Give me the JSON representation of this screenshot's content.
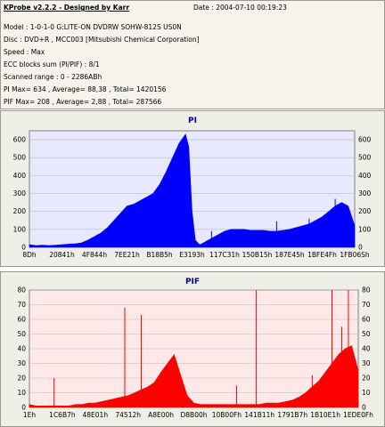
{
  "header": {
    "title": "KProbe v2.2.2 - Designed by Karr",
    "date": "Date : 2004-07-10 00:19:23",
    "model": "Model : 1-0-1-0 G:LITE-ON DVDRW SOHW-812S  US0N",
    "disc": "Disc : DVD+R , MCC003 [Mitsubishi Chemical Corporation]",
    "speed": "Speed : Max",
    "ecc": "ECC blocks sum (PI/PIF) : 8/1",
    "range": "Scanned range : 0 - 2286ABh",
    "pi_stats": "PI Max= 634 , Average= 88,38 , Total= 1420156",
    "pif_stats": "PIF Max= 208 , Average= 2,88 , Total= 287566"
  },
  "chart_data": [
    {
      "type": "bar",
      "title": "PI",
      "color": "#0000ff",
      "background": "#e8e8ff",
      "grid": true,
      "ylim": [
        0,
        650
      ],
      "yticks": [
        0,
        100,
        200,
        300,
        400,
        500,
        600
      ],
      "xticks": [
        "8Dh",
        "20841h",
        "4F844h",
        "7EE21h",
        "B18B5h",
        "E3193h",
        "117C31h",
        "150B15h",
        "187E45h",
        "1BFE4Fh",
        "1FB06Sh"
      ],
      "x": [
        0,
        0.02,
        0.04,
        0.06,
        0.08,
        0.1,
        0.12,
        0.14,
        0.16,
        0.18,
        0.2,
        0.22,
        0.24,
        0.26,
        0.28,
        0.3,
        0.32,
        0.34,
        0.36,
        0.38,
        0.4,
        0.42,
        0.44,
        0.46,
        0.48,
        0.49,
        0.5,
        0.51,
        0.52,
        0.525,
        0.53,
        0.54,
        0.56,
        0.58,
        0.6,
        0.62,
        0.64,
        0.66,
        0.68,
        0.7,
        0.72,
        0.74,
        0.76,
        0.78,
        0.8,
        0.82,
        0.84,
        0.86,
        0.88,
        0.9,
        0.92,
        0.94,
        0.96,
        0.98,
        1.0
      ],
      "values": [
        15,
        10,
        12,
        10,
        12,
        15,
        18,
        20,
        25,
        40,
        60,
        80,
        110,
        150,
        190,
        230,
        240,
        260,
        280,
        300,
        350,
        420,
        500,
        580,
        630,
        560,
        200,
        40,
        20,
        15,
        20,
        30,
        50,
        70,
        90,
        100,
        100,
        100,
        95,
        95,
        95,
        90,
        90,
        95,
        100,
        110,
        120,
        130,
        150,
        170,
        200,
        230,
        250,
        230,
        120
      ],
      "spikes": [
        {
          "x": 0.56,
          "value": 90
        },
        {
          "x": 0.76,
          "value": 145
        },
        {
          "x": 0.86,
          "value": 160
        },
        {
          "x": 0.94,
          "value": 270
        }
      ]
    },
    {
      "type": "bar",
      "title": "PIF",
      "color": "#ff0000",
      "background": "#ffe8e8",
      "grid": true,
      "ylim": [
        0,
        80
      ],
      "yticks": [
        0,
        10,
        20,
        30,
        40,
        50,
        60,
        70,
        80
      ],
      "xticks": [
        "1Eh",
        "1C6B7h",
        "48E01h",
        "74512h",
        "A8E00h",
        "D8B00h",
        "10B00Fh",
        "141B11h",
        "1791B7h",
        "1B10E1h",
        "1EDE0Fh"
      ],
      "x": [
        0,
        0.02,
        0.04,
        0.06,
        0.08,
        0.1,
        0.12,
        0.14,
        0.16,
        0.18,
        0.2,
        0.22,
        0.24,
        0.26,
        0.28,
        0.3,
        0.32,
        0.34,
        0.36,
        0.38,
        0.4,
        0.42,
        0.44,
        0.46,
        0.48,
        0.5,
        0.52,
        0.54,
        0.56,
        0.58,
        0.6,
        0.62,
        0.64,
        0.66,
        0.68,
        0.7,
        0.72,
        0.74,
        0.76,
        0.78,
        0.8,
        0.82,
        0.84,
        0.86,
        0.88,
        0.9,
        0.92,
        0.94,
        0.96,
        0.98,
        1.0
      ],
      "values": [
        2,
        1,
        1,
        1,
        1,
        1,
        1,
        2,
        2,
        3,
        3,
        4,
        5,
        6,
        7,
        8,
        10,
        12,
        14,
        17,
        24,
        30,
        36,
        22,
        8,
        3,
        2,
        2,
        2,
        2,
        2,
        2,
        2,
        2,
        2,
        2,
        3,
        3,
        3,
        4,
        5,
        7,
        10,
        14,
        18,
        24,
        30,
        36,
        40,
        42,
        25
      ],
      "spikes": [
        {
          "x": 0.075,
          "value": 20
        },
        {
          "x": 0.29,
          "value": 68
        },
        {
          "x": 0.34,
          "value": 63
        },
        {
          "x": 0.63,
          "value": 15
        },
        {
          "x": 0.69,
          "value": 80
        },
        {
          "x": 0.86,
          "value": 22
        },
        {
          "x": 0.92,
          "value": 80
        },
        {
          "x": 0.95,
          "value": 55
        },
        {
          "x": 0.97,
          "value": 80
        }
      ]
    }
  ]
}
